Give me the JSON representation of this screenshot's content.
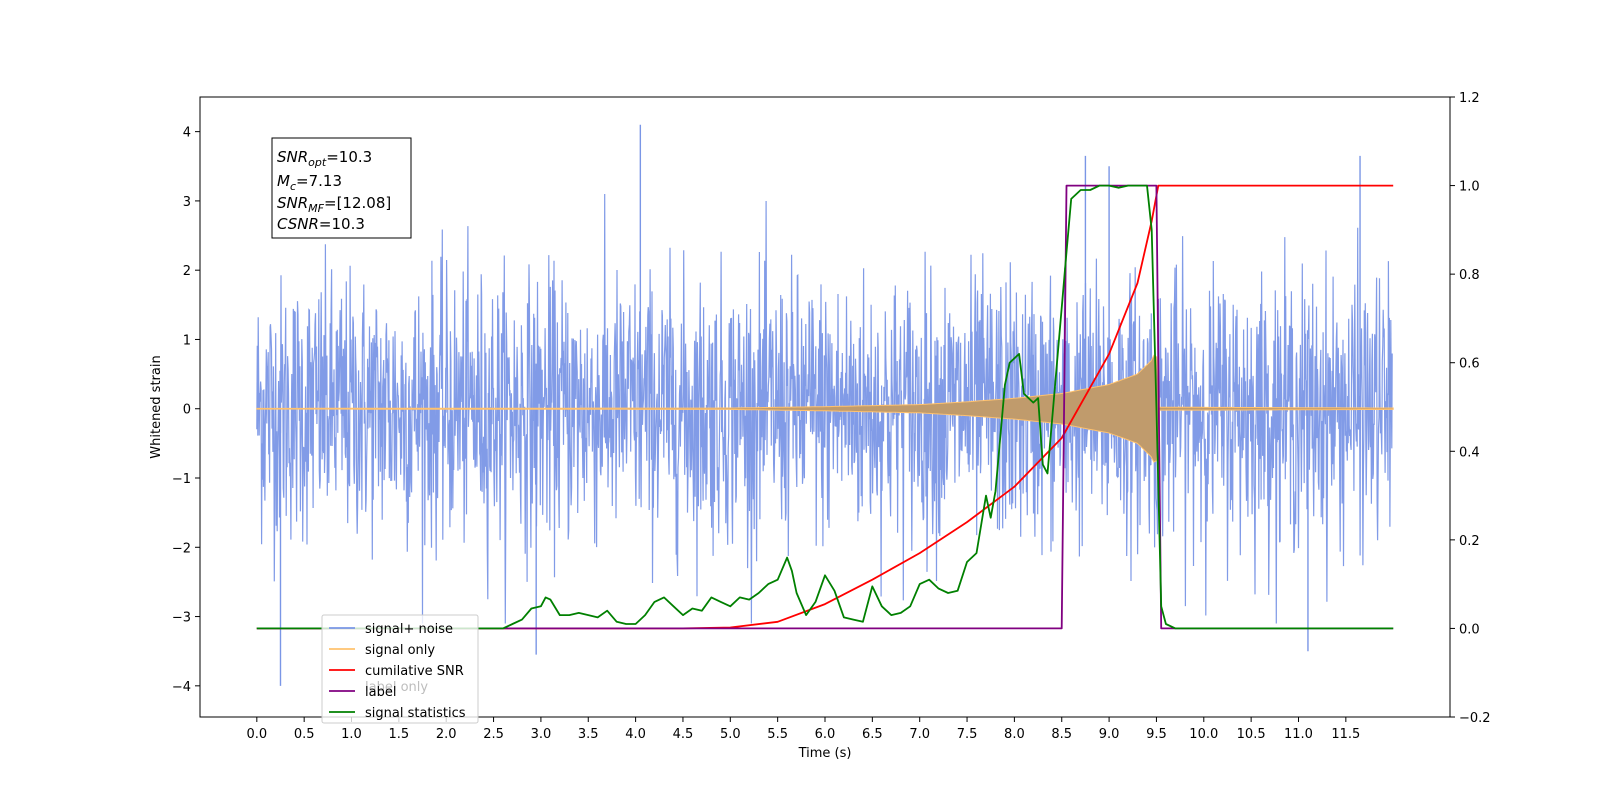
{
  "chart_data": {
    "type": "line",
    "xlabel": "Time (s)",
    "ylabel": "Whitened strain",
    "xlim": [
      -0.6,
      12.6
    ],
    "ylim": [
      -4.45,
      4.5
    ],
    "y2lim": [
      -0.2,
      1.2
    ],
    "x_ticks": [
      "0.0",
      "0.5",
      "1.0",
      "1.5",
      "2.0",
      "2.5",
      "3.0",
      "3.5",
      "4.0",
      "4.5",
      "5.0",
      "5.5",
      "6.0",
      "6.5",
      "7.0",
      "7.5",
      "8.0",
      "8.5",
      "9.0",
      "9.5",
      "10.0",
      "10.5",
      "11.0",
      "11.5"
    ],
    "y_ticks": [
      "4",
      "3",
      "2",
      "1",
      "0",
      "−1",
      "−2",
      "−3",
      "−4"
    ],
    "y2_ticks": [
      "1.2",
      "1.0",
      "0.8",
      "0.6",
      "0.4",
      "0.2",
      "0.0",
      "−0.2"
    ],
    "info_box": {
      "snr_opt": {
        "base": "SNR",
        "sub": "opt",
        "value": "=10.3"
      },
      "mc": {
        "base": "M",
        "sub": "c",
        "value": "=7.13"
      },
      "snr_mf": {
        "base": "SNR",
        "sub": "MF",
        "value": "=[12.08]"
      },
      "csnr": {
        "base": "CSNR",
        "sub": "",
        "value": "=10.3"
      }
    },
    "legend": {
      "position": "lower-left",
      "entries": [
        {
          "label": "signal+ noise",
          "color": "#7a96e6"
        },
        {
          "label": "signal only",
          "color": "#ffc26e"
        },
        {
          "label": "cumilative SNR",
          "color": "#ff0000"
        },
        {
          "label": "label",
          "color": "#800080"
        },
        {
          "label": "signal statistics",
          "color": "#008000"
        }
      ],
      "hidden_label": "label only"
    },
    "series": [
      {
        "name": "signal+ noise",
        "axis": "left",
        "color": "#7a96e6",
        "description_range": {
          "x": [
            0.0,
            11.99
          ],
          "typical_abs_max": 2.3,
          "peaks": [
            [
              0.25,
              -4.0
            ],
            [
              4.05,
              4.1
            ],
            [
              2.95,
              -3.55
            ],
            [
              11.1,
              -3.5
            ],
            [
              8.75,
              3.65
            ],
            [
              9.0,
              3.5
            ],
            [
              11.65,
              3.65
            ]
          ]
        }
      },
      {
        "name": "signal only",
        "axis": "left",
        "color": "#c09b6c",
        "envelope": {
          "x": [
            0.0,
            5.0,
            6.0,
            7.0,
            7.5,
            8.0,
            8.5,
            9.0,
            9.3,
            9.45,
            9.5,
            9.53,
            10.0,
            12.0
          ],
          "amp": [
            0.005,
            0.01,
            0.03,
            0.06,
            0.1,
            0.15,
            0.22,
            0.35,
            0.5,
            0.7,
            0.85,
            0.02,
            0.02,
            0.01
          ]
        }
      },
      {
        "name": "cumilative SNR",
        "axis": "right",
        "color": "#ff0000",
        "x": [
          0.0,
          4.5,
          5.0,
          5.5,
          6.0,
          6.5,
          7.0,
          7.5,
          8.0,
          8.5,
          9.0,
          9.3,
          9.45,
          9.52,
          9.53,
          12.0
        ],
        "values": [
          0.0,
          0.0,
          0.002,
          0.015,
          0.055,
          0.11,
          0.17,
          0.24,
          0.32,
          0.43,
          0.62,
          0.78,
          0.92,
          1.0,
          1.0,
          1.0
        ]
      },
      {
        "name": "label",
        "axis": "right",
        "color": "#800080",
        "x": [
          0.0,
          8.5,
          8.55,
          9.5,
          9.55,
          12.0
        ],
        "values": [
          0.0,
          0.0,
          1.0,
          1.0,
          0.0,
          0.0
        ]
      },
      {
        "name": "signal statistics",
        "axis": "right",
        "color": "#008000",
        "x": [
          0.0,
          2.6,
          2.7,
          2.8,
          2.9,
          3.0,
          3.05,
          3.1,
          3.2,
          3.3,
          3.4,
          3.5,
          3.6,
          3.7,
          3.8,
          3.9,
          4.0,
          4.1,
          4.2,
          4.3,
          4.4,
          4.5,
          4.6,
          4.7,
          4.8,
          4.9,
          5.0,
          5.1,
          5.2,
          5.3,
          5.4,
          5.5,
          5.6,
          5.65,
          5.7,
          5.8,
          5.9,
          6.0,
          6.1,
          6.2,
          6.3,
          6.4,
          6.5,
          6.6,
          6.7,
          6.8,
          6.9,
          7.0,
          7.1,
          7.2,
          7.3,
          7.4,
          7.5,
          7.6,
          7.7,
          7.75,
          7.8,
          7.9,
          7.95,
          8.05,
          8.1,
          8.2,
          8.25,
          8.3,
          8.35,
          8.45,
          8.55,
          8.6,
          8.7,
          8.8,
          8.9,
          9.0,
          9.1,
          9.2,
          9.3,
          9.4,
          9.45,
          9.5,
          9.55,
          9.6,
          9.7,
          9.8,
          12.0
        ],
        "values": [
          0.0,
          0.0,
          0.01,
          0.02,
          0.045,
          0.05,
          0.07,
          0.065,
          0.03,
          0.03,
          0.035,
          0.03,
          0.025,
          0.04,
          0.015,
          0.01,
          0.01,
          0.03,
          0.06,
          0.07,
          0.05,
          0.03,
          0.045,
          0.04,
          0.07,
          0.06,
          0.05,
          0.07,
          0.065,
          0.08,
          0.1,
          0.11,
          0.16,
          0.13,
          0.08,
          0.03,
          0.06,
          0.12,
          0.085,
          0.025,
          0.02,
          0.015,
          0.095,
          0.05,
          0.03,
          0.035,
          0.05,
          0.1,
          0.11,
          0.09,
          0.08,
          0.085,
          0.15,
          0.17,
          0.3,
          0.25,
          0.31,
          0.55,
          0.6,
          0.62,
          0.53,
          0.51,
          0.52,
          0.37,
          0.35,
          0.6,
          0.85,
          0.97,
          0.99,
          0.99,
          1.0,
          1.0,
          0.995,
          1.0,
          1.0,
          1.0,
          0.9,
          0.5,
          0.05,
          0.01,
          0.0,
          0.0,
          0.0
        ]
      }
    ]
  }
}
